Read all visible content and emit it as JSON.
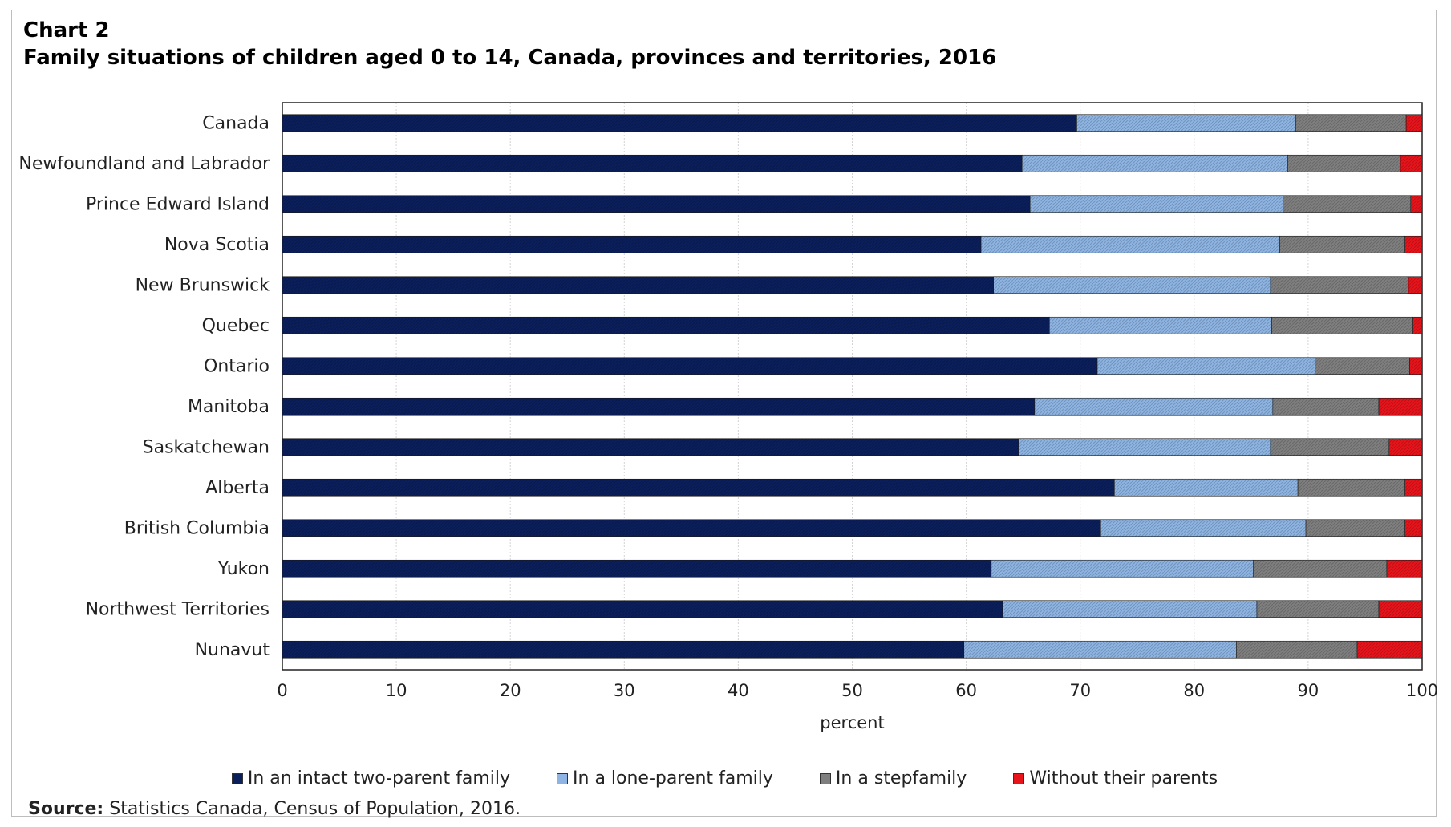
{
  "header": {
    "chart_number": "Chart 2",
    "title": "Family situations of children aged 0 to 14, Canada, provinces and territories,  2016"
  },
  "footer": {
    "source_label": "Source:",
    "source_text": " Statistics Canada, Census of Population, 2016."
  },
  "chart_data": {
    "type": "bar",
    "orientation": "horizontal",
    "stacked": true,
    "title": "Family situations of children aged 0 to 14, Canada, provinces and territories,  2016",
    "xlabel": "percent",
    "ylabel": "",
    "xlim": [
      0,
      100
    ],
    "x_ticks": [
      0,
      10,
      20,
      30,
      40,
      50,
      60,
      70,
      80,
      90,
      100
    ],
    "grid": true,
    "legend_position": "bottom",
    "categories": [
      "Canada",
      "Newfoundland and Labrador",
      "Prince Edward Island",
      "Nova Scotia",
      "New Brunswick",
      "Quebec",
      "Ontario",
      "Manitoba",
      "Saskatchewan",
      "Alberta",
      "British Columbia",
      "Yukon",
      "Northwest Territories",
      "Nunavut"
    ],
    "series": [
      {
        "name": "In an intact two-parent family",
        "color": "#0b1f5c",
        "values": [
          69.7,
          64.9,
          65.6,
          61.3,
          62.4,
          67.3,
          71.5,
          66.0,
          64.6,
          73.0,
          71.8,
          62.2,
          63.2,
          59.8
        ]
      },
      {
        "name": "In a lone-parent family",
        "color": "#8db4e2",
        "values": [
          19.2,
          23.3,
          22.2,
          26.2,
          24.3,
          19.5,
          19.1,
          20.9,
          22.1,
          16.1,
          18.0,
          23.0,
          22.3,
          23.9
        ]
      },
      {
        "name": "In a stepfamily",
        "color": "#7f7f7f",
        "values": [
          9.7,
          9.9,
          11.2,
          11.0,
          12.1,
          12.4,
          8.3,
          9.3,
          10.4,
          9.4,
          8.7,
          11.7,
          10.7,
          10.6
        ]
      },
      {
        "name": "Without their parents",
        "color": "#e8141b",
        "values": [
          1.4,
          1.9,
          1.0,
          1.5,
          1.2,
          0.8,
          1.1,
          3.8,
          2.9,
          1.5,
          1.5,
          3.1,
          3.8,
          5.7
        ]
      }
    ]
  }
}
